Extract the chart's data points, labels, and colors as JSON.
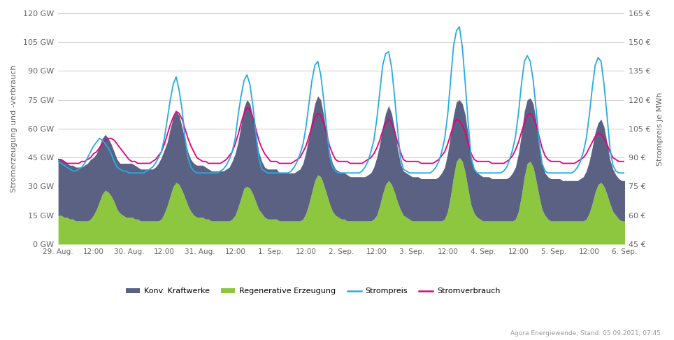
{
  "ylabel_left": "Stromerzeugung und -verbrauch",
  "ylabel_right": "Strompreis je MWh",
  "ylim_left": [
    0,
    120
  ],
  "ylim_right": [
    45,
    165
  ],
  "yticks_left": [
    0,
    15,
    30,
    45,
    60,
    75,
    90,
    105,
    120
  ],
  "yticks_right": [
    45,
    60,
    75,
    90,
    105,
    120,
    135,
    150,
    165
  ],
  "ytick_labels_left": [
    "0 GW",
    "15 GW",
    "30 GW",
    "45 GW",
    "60 GW",
    "75 GW",
    "90 GW",
    "105 GW",
    "120 GW"
  ],
  "ytick_labels_right": [
    "45 €",
    "60 €",
    "75 €",
    "90 €",
    "105 €",
    "120 €",
    "135 €",
    "150 €",
    "165 €"
  ],
  "color_konv": "#5a6182",
  "color_regen": "#8dc63f",
  "color_preis": "#29abe2",
  "color_verbrauch": "#e5007d",
  "bg_color": "#ffffff",
  "grid_color": "#cccccc",
  "source_text": "Agora Energiewende; Stand: 05.09.2021, 07:45",
  "legend_labels": [
    "Konv. Kraftwerke",
    "Regenerative Erzeugung",
    "Strompreis",
    "Stromverbrauch"
  ],
  "x_tick_labels": [
    "29. Aug.",
    "12:00",
    "30. Aug.",
    "12:00",
    "31. Aug.",
    "12:00",
    "1. Sep.",
    "12:00",
    "2. Sep.",
    "12:00",
    "3. Sep.",
    "12:00",
    "4. Sep.",
    "12:00",
    "5. Sep.",
    "12:00",
    "6. Sep."
  ]
}
